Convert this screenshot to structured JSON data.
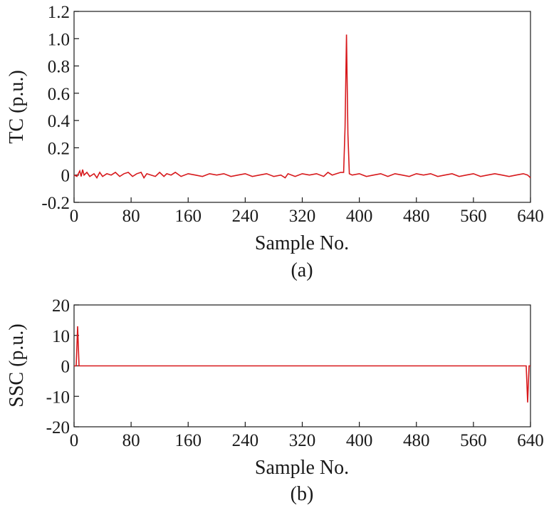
{
  "chart_data": [
    {
      "type": "line",
      "panel_label": "(a)",
      "xlabel": "Sample No.",
      "ylabel": "TC (p.u.)",
      "xlim": [
        0,
        640
      ],
      "ylim": [
        -0.2,
        1.2
      ],
      "xticks": [
        "0",
        "80",
        "160",
        "240",
        "320",
        "400",
        "480",
        "560",
        "640"
      ],
      "yticks": [
        "-0.2",
        "0",
        "0.2",
        "0.4",
        "0.6",
        "0.8",
        "1.0",
        "1.2"
      ],
      "grid": false,
      "line_color": "#d7191c",
      "series": [
        {
          "x": [
            0,
            4,
            8,
            10,
            12,
            14,
            18,
            22,
            28,
            32,
            36,
            40,
            46,
            52,
            58,
            64,
            70,
            76,
            82,
            88,
            94,
            98,
            102,
            108,
            114,
            120,
            126,
            130,
            136,
            142,
            150,
            160,
            170,
            180,
            190,
            200,
            210,
            220,
            230,
            240,
            250,
            260,
            270,
            280,
            290,
            296,
            300,
            310,
            320,
            330,
            340,
            350,
            356,
            362,
            368,
            374,
            378,
            380,
            382,
            384,
            386,
            390,
            400,
            410,
            420,
            430,
            440,
            450,
            460,
            470,
            480,
            490,
            500,
            510,
            520,
            530,
            540,
            550,
            560,
            570,
            580,
            590,
            600,
            610,
            620,
            630,
            636,
            640
          ],
          "y": [
            0.0,
            -0.01,
            0.03,
            -0.01,
            0.04,
            0.0,
            0.02,
            -0.01,
            0.01,
            -0.02,
            0.02,
            -0.01,
            0.01,
            0.0,
            0.02,
            -0.01,
            0.01,
            0.02,
            -0.01,
            0.01,
            0.02,
            -0.02,
            0.01,
            0.0,
            -0.01,
            0.02,
            -0.01,
            0.01,
            0.0,
            0.02,
            -0.01,
            0.01,
            0.0,
            -0.01,
            0.01,
            0.0,
            0.01,
            -0.01,
            0.0,
            0.01,
            -0.01,
            0.0,
            0.01,
            -0.01,
            0.0,
            -0.02,
            0.01,
            -0.01,
            0.01,
            0.0,
            0.01,
            -0.01,
            0.02,
            0.0,
            0.01,
            0.02,
            0.02,
            0.35,
            1.03,
            0.3,
            0.01,
            0.0,
            0.01,
            -0.01,
            0.0,
            0.01,
            -0.01,
            0.01,
            0.0,
            -0.01,
            0.01,
            0.0,
            0.01,
            -0.01,
            0.0,
            0.01,
            -0.01,
            0.0,
            0.01,
            -0.01,
            0.0,
            0.01,
            0.0,
            -0.01,
            0.0,
            0.01,
            0.0,
            -0.02
          ]
        }
      ]
    },
    {
      "type": "line",
      "panel_label": "(b)",
      "xlabel": "Sample No.",
      "ylabel": "SSC (p.u.)",
      "xlim": [
        0,
        640
      ],
      "ylim": [
        -20,
        20
      ],
      "xticks": [
        "0",
        "80",
        "160",
        "240",
        "320",
        "400",
        "480",
        "560",
        "640"
      ],
      "yticks": [
        "-20",
        "-10",
        "0",
        "10",
        "20"
      ],
      "grid": false,
      "line_color": "#d7191c",
      "series": [
        {
          "x": [
            0,
            3,
            5,
            7,
            9,
            12,
            100,
            200,
            300,
            400,
            500,
            600,
            632,
            634,
            636,
            638,
            640
          ],
          "y": [
            0,
            0,
            13,
            0,
            0,
            0,
            0,
            0,
            0,
            0,
            0,
            0,
            0,
            0,
            -12,
            0,
            0
          ]
        }
      ]
    }
  ]
}
